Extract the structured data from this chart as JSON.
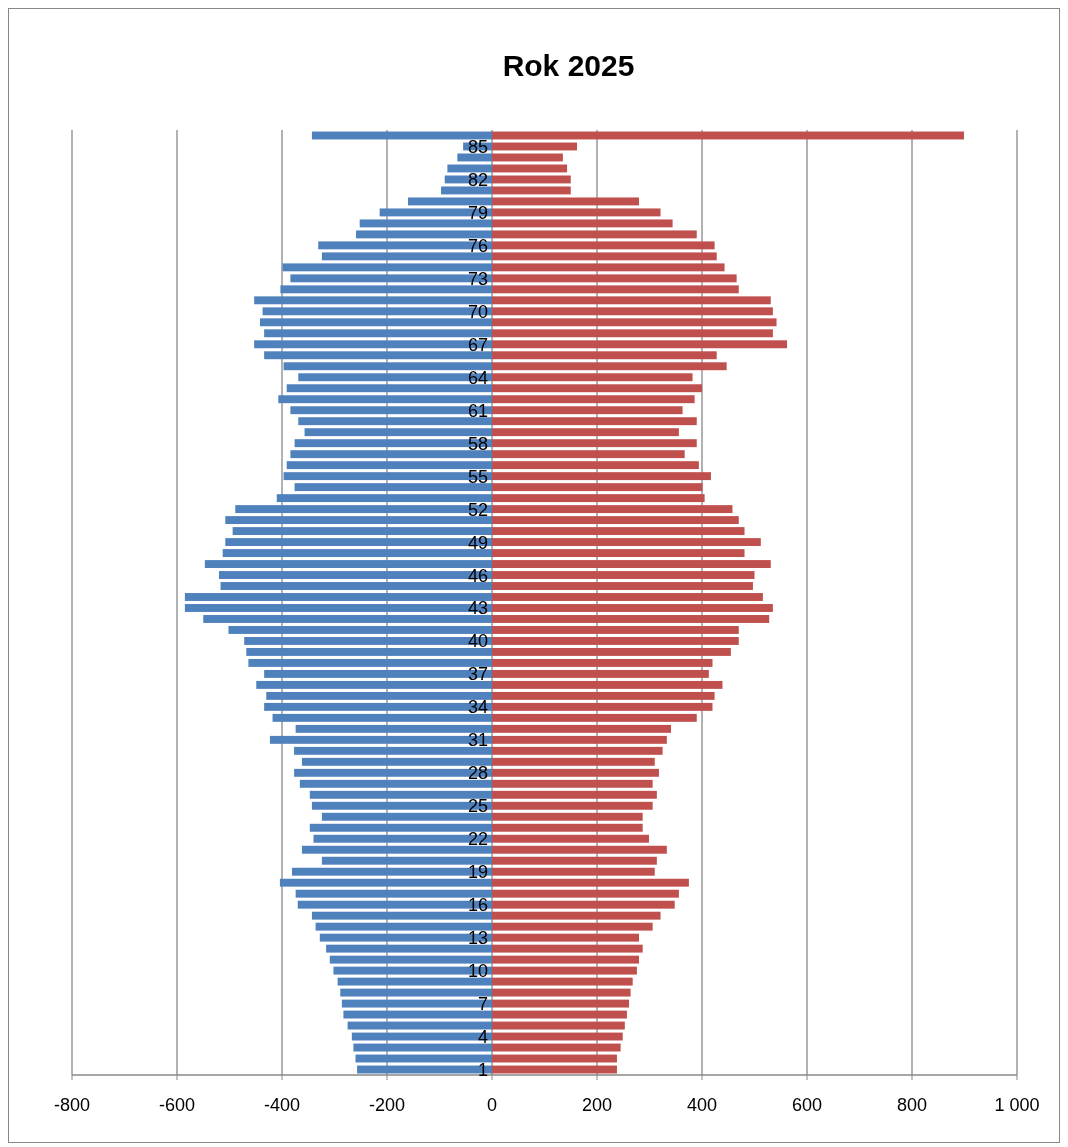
{
  "chart_data": {
    "type": "bar",
    "title": "Rok 2025",
    "orientation": "horizontal",
    "stacked": true,
    "grid": "x",
    "categories": [
      null,
      "85",
      null,
      null,
      "82",
      null,
      null,
      "79",
      null,
      null,
      "76",
      null,
      null,
      "73",
      null,
      null,
      "70",
      null,
      null,
      "67",
      null,
      null,
      "64",
      null,
      null,
      "61",
      null,
      null,
      "58",
      null,
      null,
      "55",
      null,
      null,
      "52",
      null,
      null,
      "49",
      null,
      null,
      "46",
      null,
      null,
      "43",
      null,
      null,
      "40",
      null,
      null,
      "37",
      null,
      null,
      "34",
      null,
      null,
      "31",
      null,
      null,
      "28",
      null,
      null,
      "25",
      null,
      null,
      "22",
      null,
      null,
      "19",
      null,
      null,
      "16",
      null,
      null,
      "13",
      null,
      null,
      "10",
      null,
      null,
      "7",
      null,
      null,
      "4",
      null,
      null,
      "1"
    ],
    "xlim": [
      -800,
      1000
    ],
    "xticks": [
      -800,
      -600,
      -400,
      -200,
      0,
      200,
      400,
      600,
      800,
      {
        "value": 1000,
        "label": "1 000"
      }
    ],
    "series": [
      {
        "color": "#4f81bd",
        "values": [
          -343,
          -55,
          -66,
          -85,
          -90,
          -97,
          -160,
          -214,
          -252,
          -259,
          -331,
          -324,
          -399,
          -384,
          -403,
          -453,
          -437,
          -442,
          -434,
          -453,
          -434,
          -397,
          -369,
          -391,
          -407,
          -384,
          -369,
          -357,
          -376,
          -384,
          -391,
          -397,
          -376,
          -410,
          -489,
          -508,
          -494,
          -508,
          -513,
          -547,
          -520,
          -517,
          -585,
          -585,
          -550,
          -502,
          -472,
          -468,
          -464,
          -434,
          -449,
          -430,
          -434,
          -418,
          -374,
          -423,
          -377,
          -362,
          -377,
          -366,
          -347,
          -343,
          -324,
          -347,
          -340,
          -362,
          -324,
          -381,
          -404,
          -374,
          -370,
          -343,
          -336,
          -328,
          -316,
          -309,
          -302,
          -294,
          -289,
          -286,
          -283,
          -275,
          -267,
          -264,
          -260,
          -257
        ]
      },
      {
        "color": "#c0504d",
        "values": [
          899,
          162,
          135,
          143,
          150,
          150,
          280,
          321,
          344,
          390,
          424,
          428,
          443,
          466,
          470,
          531,
          535,
          542,
          535,
          562,
          428,
          447,
          382,
          400,
          386,
          363,
          390,
          356,
          390,
          367,
          394,
          417,
          401,
          405,
          458,
          470,
          481,
          512,
          481,
          531,
          500,
          497,
          516,
          535,
          528,
          470,
          470,
          455,
          420,
          413,
          439,
          424,
          420,
          390,
          341,
          333,
          325,
          310,
          318,
          306,
          314,
          306,
          287,
          287,
          299,
          333,
          314,
          310,
          375,
          356,
          348,
          321,
          306,
          280,
          287,
          280,
          276,
          268,
          264,
          261,
          257,
          253,
          249,
          245,
          238,
          238
        ]
      }
    ]
  }
}
